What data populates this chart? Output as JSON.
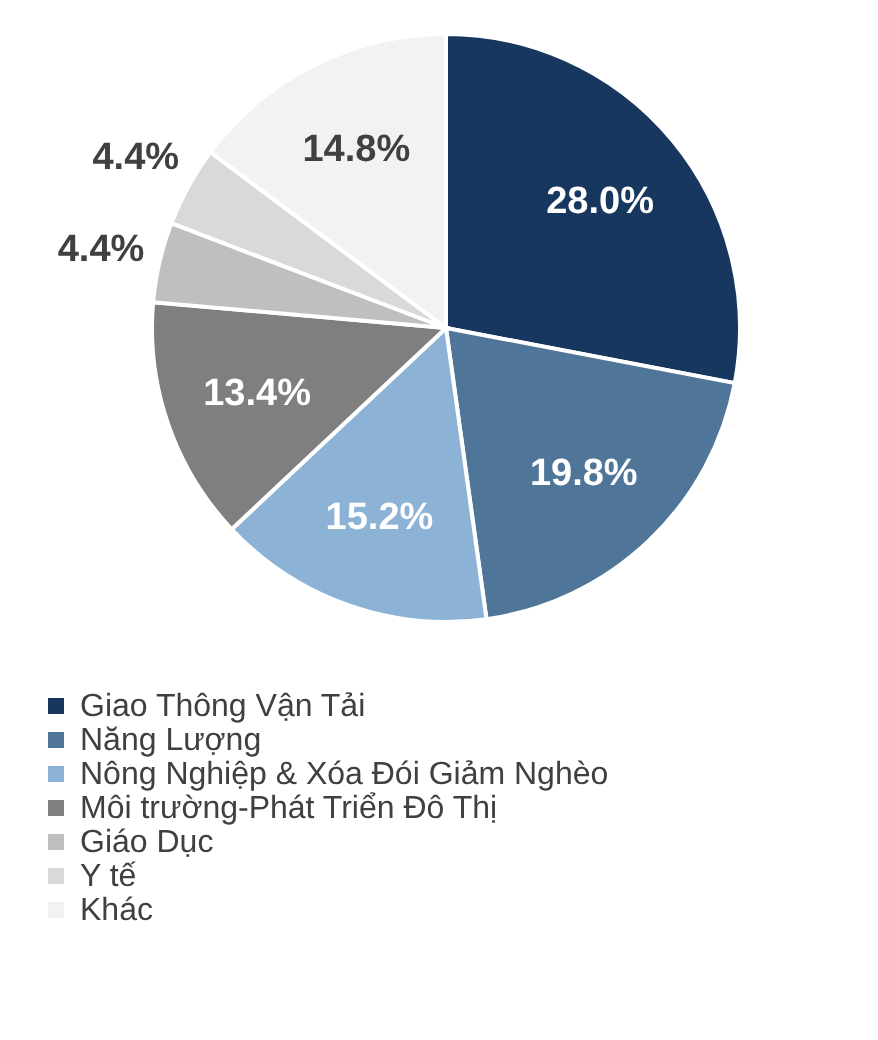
{
  "chart_data": {
    "type": "pie",
    "categories": [
      "Giao Thông Vận Tải",
      "Năng Lượng",
      "Nông Nghiệp & Xóa Đói Giảm Nghèo",
      "Môi trường-Phát Triển Đô Thị",
      "Giáo Dục",
      "Y tế",
      "Khác"
    ],
    "values": [
      28.0,
      19.8,
      15.2,
      13.4,
      4.4,
      4.4,
      14.8
    ],
    "colors": [
      "#17375e",
      "#4f7599",
      "#8cb3d6",
      "#7f7f7f",
      "#bfbfbf",
      "#d9d9d9",
      "#f2f2f2"
    ],
    "value_labels": [
      "28.0%",
      "19.8%",
      "15.2%",
      "13.4%",
      "4.4%",
      "4.4%",
      "14.8%"
    ],
    "legend": "bottom left"
  }
}
